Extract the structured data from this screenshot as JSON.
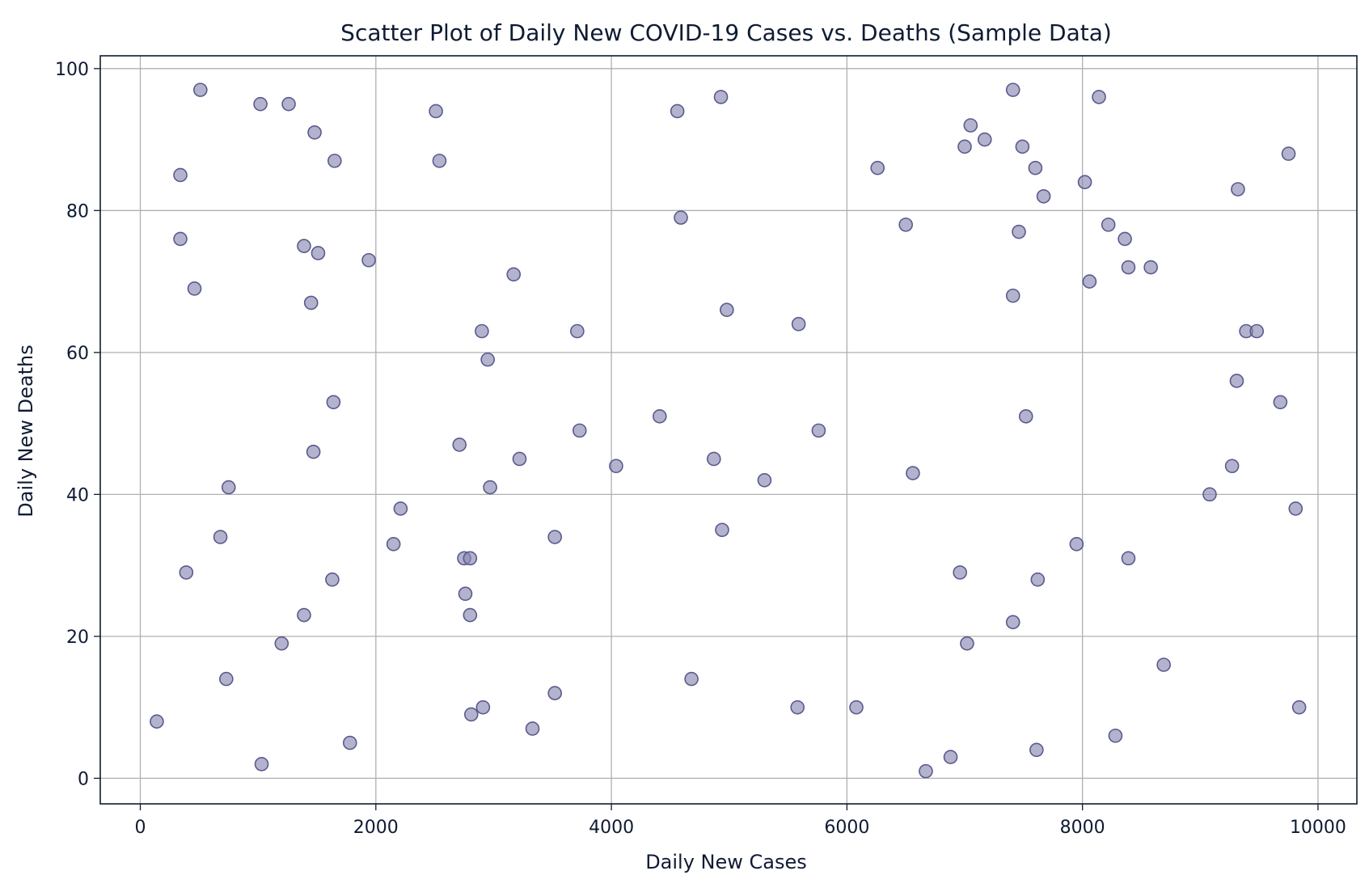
{
  "chart_data": {
    "type": "scatter",
    "title": "Scatter Plot of Daily New COVID-19 Cases vs. Deaths (Sample Data)",
    "xlabel": "Daily New Cases",
    "ylabel": "Daily New Deaths",
    "xlim": [
      -340,
      10330
    ],
    "ylim": [
      -3.6,
      101.8
    ],
    "xticks": [
      0,
      2000,
      4000,
      6000,
      8000,
      10000
    ],
    "yticks": [
      0,
      20,
      40,
      60,
      80,
      100
    ],
    "grid": true,
    "marker_color": "#8a8ab4",
    "marker_alpha": 0.65,
    "x": [
      510,
      1020,
      1260,
      1480,
      1650,
      340,
      340,
      460,
      1390,
      1510,
      1450,
      1940,
      2510,
      2540,
      3170,
      2900,
      2950,
      3710,
      4560,
      4930,
      4590,
      4980,
      5590,
      1640,
      1470,
      750,
      680,
      390,
      1630,
      1390,
      1200,
      730,
      140,
      1030,
      1780,
      2150,
      2210,
      2710,
      2750,
      2800,
      2760,
      2800,
      2810,
      2910,
      3220,
      2970,
      3520,
      3520,
      3330,
      3730,
      4040,
      4410,
      4870,
      4940,
      4680,
      5300,
      5760,
      5580,
      6080,
      6260,
      6500,
      6560,
      6670,
      6880,
      6960,
      7000,
      7020,
      7050,
      7170,
      7410,
      7410,
      7410,
      7460,
      7490,
      7520,
      7600,
      7620,
      7610,
      7670,
      7950,
      8020,
      8060,
      8140,
      8220,
      8280,
      8360,
      8390,
      8390,
      8580,
      8690,
      9080,
      9270,
      9310,
      9320,
      9390,
      9480,
      9680,
      9750,
      9810,
      9840
    ],
    "y": [
      97,
      95,
      95,
      91,
      87,
      85,
      76,
      69,
      75,
      74,
      67,
      73,
      94,
      87,
      71,
      63,
      59,
      63,
      94,
      96,
      79,
      66,
      64,
      53,
      46,
      41,
      34,
      29,
      28,
      23,
      19,
      14,
      8,
      2,
      5,
      33,
      38,
      47,
      31,
      31,
      26,
      23,
      9,
      10,
      45,
      41,
      34,
      12,
      7,
      49,
      44,
      51,
      45,
      35,
      14,
      42,
      49,
      10,
      10,
      86,
      78,
      43,
      1,
      3,
      29,
      89,
      19,
      92,
      90,
      97,
      68,
      22,
      77,
      89,
      51,
      86,
      28,
      4,
      82,
      33,
      84,
      70,
      96,
      78,
      6,
      76,
      72,
      31,
      72,
      16,
      40,
      44,
      56,
      83,
      63,
      63,
      53,
      88,
      38,
      10
    ]
  }
}
